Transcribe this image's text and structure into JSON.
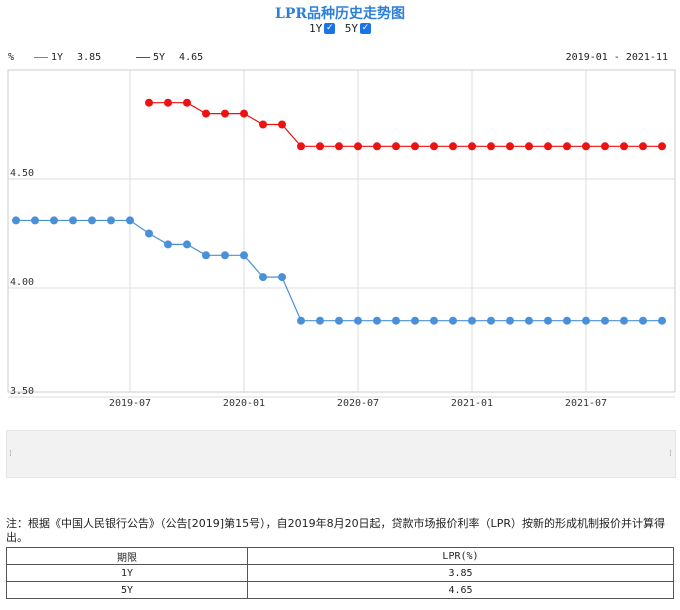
{
  "title": "LPR品种历史走势图",
  "toggles": [
    {
      "label": "1Y",
      "checked": true
    },
    {
      "label": "5Y",
      "checked": true
    }
  ],
  "legend": {
    "unit": "%",
    "series": [
      {
        "name": "1Y",
        "value": "3.85",
        "color": "#4a90d9"
      },
      {
        "name": "5Y",
        "value": "4.65",
        "color": "#ee1111"
      }
    ],
    "range": "2019-01 - 2021-11"
  },
  "chart_data": {
    "type": "line",
    "x": [
      "2019-01",
      "2019-02",
      "2019-03",
      "2019-04",
      "2019-05",
      "2019-06",
      "2019-07",
      "2019-08",
      "2019-09",
      "2019-10",
      "2019-11",
      "2019-12",
      "2020-01",
      "2020-02",
      "2020-03",
      "2020-04",
      "2020-05",
      "2020-06",
      "2020-07",
      "2020-08",
      "2020-09",
      "2020-10",
      "2020-11",
      "2020-12",
      "2021-01",
      "2021-02",
      "2021-03",
      "2021-04",
      "2021-05",
      "2021-06",
      "2021-07",
      "2021-08",
      "2021-09",
      "2021-10",
      "2021-11"
    ],
    "series": [
      {
        "name": "1Y",
        "color": "#4a90d9",
        "values": [
          4.31,
          4.31,
          4.31,
          4.31,
          4.31,
          4.31,
          4.31,
          4.25,
          4.2,
          4.2,
          4.15,
          4.15,
          4.15,
          4.05,
          4.05,
          3.85,
          3.85,
          3.85,
          3.85,
          3.85,
          3.85,
          3.85,
          3.85,
          3.85,
          3.85,
          3.85,
          3.85,
          3.85,
          3.85,
          3.85,
          3.85,
          3.85,
          3.85,
          3.85,
          3.85
        ]
      },
      {
        "name": "5Y",
        "color": "#ee1111",
        "values": [
          null,
          null,
          null,
          null,
          null,
          null,
          null,
          4.85,
          4.85,
          4.85,
          4.8,
          4.8,
          4.8,
          4.75,
          4.75,
          4.65,
          4.65,
          4.65,
          4.65,
          4.65,
          4.65,
          4.65,
          4.65,
          4.65,
          4.65,
          4.65,
          4.65,
          4.65,
          4.65,
          4.65,
          4.65,
          4.65,
          4.65,
          4.65,
          4.65
        ]
      }
    ],
    "yticks": [
      "4.50",
      "4.00",
      "3.50"
    ],
    "ytick_values": [
      4.5,
      4.0,
      3.5
    ],
    "xticks": [
      "2019-07",
      "2020-01",
      "2020-07",
      "2021-01",
      "2021-07"
    ],
    "ylim": [
      3.5,
      4.95
    ],
    "grid": true
  },
  "note": "注：根据《中国人民银行公告》（公告[2019]第15号），自2019年8月20日起，贷款市场报价利率（LPR）按新的形成机制报价并计算得出。",
  "table": {
    "headers": [
      "期限",
      "LPR(%)"
    ],
    "rows": [
      [
        "1Y",
        "3.85"
      ],
      [
        "5Y",
        "4.65"
      ]
    ]
  }
}
